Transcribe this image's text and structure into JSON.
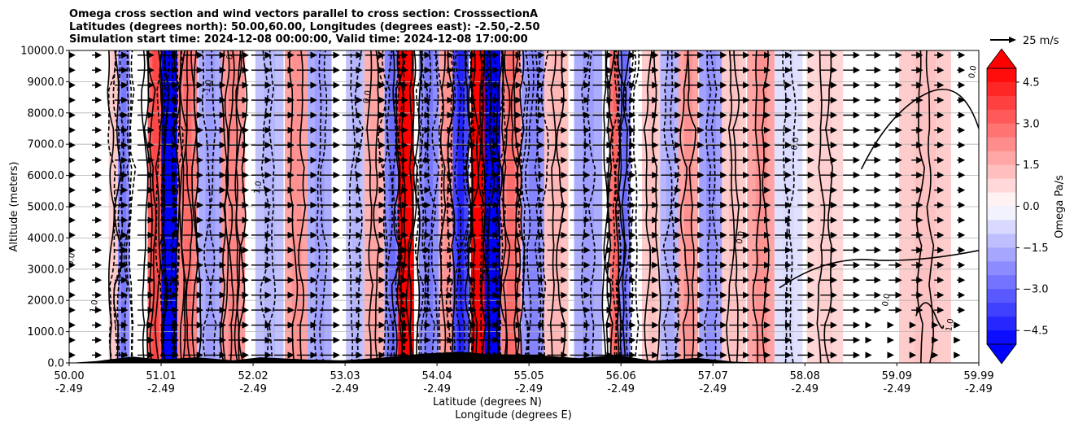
{
  "chart_data": {
    "type": "contour-cross-section",
    "title_lines": [
      "Omega cross section and wind vectors parallel to cross section: CrosssectionA",
      "Latitudes (degrees north): 50.00,60.00, Longitudes (degrees east): -2.50,-2.50",
      "Simulation start time: 2024-12-08 00:00:00, Valid time: 2024-12-08 17:00:00"
    ],
    "ylabel": "Altitude (meters)",
    "xlabel_lat": "Latitude (degrees N)",
    "xlabel_lon": "Longitude (degrees E)",
    "ylim": [
      0,
      10000
    ],
    "xlim": [
      50.0,
      59.99
    ],
    "y_ticks": [
      "0.0",
      "1000.0",
      "2000.0",
      "3000.0",
      "4000.0",
      "5000.0",
      "6000.0",
      "7000.0",
      "8000.0",
      "9000.0",
      "10000.0"
    ],
    "x_ticks": [
      {
        "lat": "50.00",
        "lon": "-2.49"
      },
      {
        "lat": "51.01",
        "lon": "-2.49"
      },
      {
        "lat": "52.02",
        "lon": "-2.49"
      },
      {
        "lat": "53.03",
        "lon": "-2.49"
      },
      {
        "lat": "54.04",
        "lon": "-2.49"
      },
      {
        "lat": "55.05",
        "lon": "-2.49"
      },
      {
        "lat": "56.06",
        "lon": "-2.49"
      },
      {
        "lat": "57.07",
        "lon": "-2.49"
      },
      {
        "lat": "58.08",
        "lon": "-2.49"
      },
      {
        "lat": "59.09",
        "lon": "-2.49"
      },
      {
        "lat": "59.99",
        "lon": "-2.49"
      }
    ],
    "colorbar": {
      "label": "Omega Pa/s",
      "vmin": -5.0,
      "vmax": 5.0,
      "ticks": [
        "4.5",
        "3.0",
        "1.5",
        "0.0",
        "−1.5",
        "−3.0",
        "−4.5"
      ],
      "levels": 20,
      "colormap": "bwr"
    },
    "vector_key": "25 m/s",
    "contour_label_texts": [
      "0.0",
      "1.0",
      "-1.0",
      "0.0",
      "1.0",
      "0.0",
      "1.0",
      "0.0",
      "0.0",
      "0.0",
      "1.0",
      "0.0"
    ],
    "bands": [
      {
        "lat": 50.5,
        "omega": 0.9
      },
      {
        "lat": 50.6,
        "omega": -2.2
      },
      {
        "lat": 50.95,
        "omega": 3.0
      },
      {
        "lat": 51.1,
        "omega": -5.0
      },
      {
        "lat": 51.3,
        "omega": 2.4
      },
      {
        "lat": 51.55,
        "omega": -1.6
      },
      {
        "lat": 51.8,
        "omega": 2.0
      },
      {
        "lat": 52.2,
        "omega": -1.2
      },
      {
        "lat": 52.5,
        "omega": 1.8
      },
      {
        "lat": 52.75,
        "omega": -1.6
      },
      {
        "lat": 53.15,
        "omega": -1.2
      },
      {
        "lat": 53.35,
        "omega": 1.5
      },
      {
        "lat": 53.55,
        "omega": -2.4
      },
      {
        "lat": 53.7,
        "omega": 5.0
      },
      {
        "lat": 53.95,
        "omega": -2.2
      },
      {
        "lat": 54.15,
        "omega": 1.8
      },
      {
        "lat": 54.3,
        "omega": -3.6
      },
      {
        "lat": 54.5,
        "omega": 5.0
      },
      {
        "lat": 54.65,
        "omega": -5.0
      },
      {
        "lat": 54.85,
        "omega": 2.4
      },
      {
        "lat": 55.1,
        "omega": -2.0
      },
      {
        "lat": 55.35,
        "omega": 1.2
      },
      {
        "lat": 55.7,
        "omega": -1.6
      },
      {
        "lat": 56.0,
        "omega": 2.6
      },
      {
        "lat": 56.1,
        "omega": -2.4
      },
      {
        "lat": 56.4,
        "omega": 1.0
      },
      {
        "lat": 56.6,
        "omega": -1.4
      },
      {
        "lat": 56.8,
        "omega": 1.8
      },
      {
        "lat": 57.05,
        "omega": -1.8
      },
      {
        "lat": 57.3,
        "omega": 1.0
      },
      {
        "lat": 57.6,
        "omega": 1.8
      },
      {
        "lat": 57.9,
        "omega": -0.6
      },
      {
        "lat": 58.3,
        "omega": 0.8
      },
      {
        "lat": 59.4,
        "omega": 1.0
      }
    ],
    "wind_columns": [
      {
        "lat": 50.0,
        "speed": 6
      },
      {
        "lat": 50.25,
        "speed": 10
      },
      {
        "lat": 50.5,
        "speed": 14
      },
      {
        "lat": 50.75,
        "speed": 18
      },
      {
        "lat": 51.0,
        "speed": 20
      },
      {
        "lat": 51.25,
        "speed": 22
      },
      {
        "lat": 51.5,
        "speed": 22
      },
      {
        "lat": 51.75,
        "speed": 22
      },
      {
        "lat": 52.0,
        "speed": 22
      },
      {
        "lat": 52.25,
        "speed": 22
      },
      {
        "lat": 52.5,
        "speed": 22
      },
      {
        "lat": 52.75,
        "speed": 22
      },
      {
        "lat": 53.0,
        "speed": 22
      },
      {
        "lat": 53.25,
        "speed": 22
      },
      {
        "lat": 53.5,
        "speed": 22
      },
      {
        "lat": 53.75,
        "speed": 22
      },
      {
        "lat": 54.0,
        "speed": 22
      },
      {
        "lat": 54.25,
        "speed": 22
      },
      {
        "lat": 54.5,
        "speed": 22
      },
      {
        "lat": 54.75,
        "speed": 22
      },
      {
        "lat": 55.0,
        "speed": 22
      },
      {
        "lat": 55.25,
        "speed": 22
      },
      {
        "lat": 55.5,
        "speed": 22
      },
      {
        "lat": 55.75,
        "speed": 22
      },
      {
        "lat": 56.0,
        "speed": 22
      },
      {
        "lat": 56.25,
        "speed": 22
      },
      {
        "lat": 56.5,
        "speed": 22
      },
      {
        "lat": 56.75,
        "speed": 22
      },
      {
        "lat": 57.0,
        "speed": 22
      },
      {
        "lat": 57.25,
        "speed": 22
      },
      {
        "lat": 57.5,
        "speed": 20
      },
      {
        "lat": 57.75,
        "speed": 18
      },
      {
        "lat": 58.0,
        "speed": 18
      },
      {
        "lat": 58.25,
        "speed": 18
      },
      {
        "lat": 58.5,
        "speed": 18
      },
      {
        "lat": 58.75,
        "speed": 16
      },
      {
        "lat": 59.0,
        "speed": 14
      },
      {
        "lat": 59.25,
        "speed": 12
      },
      {
        "lat": 59.5,
        "speed": 10
      },
      {
        "lat": 59.75,
        "speed": 8
      }
    ],
    "colors": {
      "positive_max": "#ff0000",
      "negative_max": "#0000ff",
      "neutral": "#ffffff",
      "contour": "#000000",
      "grid": "#b0b0b0",
      "terrain": "#000000"
    }
  }
}
